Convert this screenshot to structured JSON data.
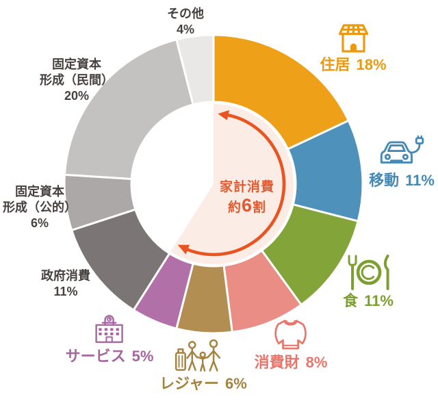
{
  "chart_data": {
    "type": "pie",
    "subtype": "donut",
    "unit": "%",
    "legend_position": "around",
    "label_text_color": "#46413F",
    "separator_color": "#ffffff",
    "segments": [
      {
        "id": "housing",
        "label": "住居",
        "value": 18,
        "pct_label": "18%",
        "color": "#EEA019",
        "label_color": "#EB9A10",
        "household": true,
        "icon": "house-solar-icon"
      },
      {
        "id": "mobility",
        "label": "移動",
        "value": 11,
        "pct_label": "11%",
        "color": "#4E92BB",
        "label_color": "#4489B6",
        "household": true,
        "icon": "ev-car-icon"
      },
      {
        "id": "food",
        "label": "食",
        "value": 11,
        "pct_label": "11%",
        "color": "#83A439",
        "label_color": "#7C9F2F",
        "household": true,
        "icon": "tableware-icon"
      },
      {
        "id": "consumer-goods",
        "label": "消費財",
        "value": 8,
        "pct_label": "8%",
        "color": "#E98D85",
        "label_color": "#E7756B",
        "household": true,
        "icon": "sweater-icon"
      },
      {
        "id": "leisure",
        "label": "レジャー",
        "value": 6,
        "pct_label": "6%",
        "color": "#B38E52",
        "label_color": "#A5833F",
        "household": true,
        "icon": "family-suitcase-icon"
      },
      {
        "id": "services",
        "label": "サービス",
        "value": 5,
        "pct_label": "5%",
        "color": "#B170A7",
        "label_color": "#A765A0",
        "household": true,
        "icon": "building-icon"
      },
      {
        "id": "government",
        "label": "政府消費",
        "value": 11,
        "pct_label": "11%",
        "color": "#7B7675",
        "household": false,
        "display_lines": [
          "政府消費",
          "11%"
        ]
      },
      {
        "id": "public-capital",
        "label": "固定資本形成（公的）",
        "value": 6,
        "pct_label": "6%",
        "color": "#ACA8A7",
        "household": false,
        "display_lines": [
          "固定資本",
          "形成（公的）",
          "6%"
        ]
      },
      {
        "id": "private-capital",
        "label": "固定資本形成（民間）",
        "value": 20,
        "pct_label": "20%",
        "color": "#C4C2C1",
        "household": false,
        "display_lines": [
          "固定資本",
          "形成（民間）",
          "20%"
        ]
      },
      {
        "id": "other",
        "label": "その他",
        "value": 4,
        "pct_label": "4%",
        "color": "#E9E8E7",
        "household": false,
        "display_lines": [
          "その他",
          "4%"
        ]
      }
    ],
    "center_label": {
      "line1": "家計消費",
      "line2_prefix": "約",
      "line2_number": "6",
      "line2_suffix": "割",
      "text_color": "#E25930"
    },
    "highlight": {
      "color": "#FBEDE5",
      "arrow_color": "#E95420",
      "household_total_pct": 59
    }
  }
}
